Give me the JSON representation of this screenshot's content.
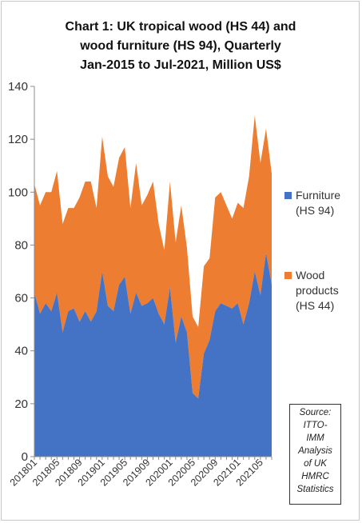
{
  "chart_data": {
    "type": "area",
    "stacked": true,
    "title_lines": [
      "Chart 1: UK tropical wood (HS 44) and",
      "wood furniture (HS 94), Quarterly",
      "Jan-2015 to Jul-2021, Million US$"
    ],
    "ylim": [
      0,
      140
    ],
    "yticks": [
      0,
      20,
      40,
      60,
      80,
      100,
      120,
      140
    ],
    "xtick_labels": [
      "201801",
      "201805",
      "201809",
      "201901",
      "201905",
      "201909",
      "202001",
      "202005",
      "202009",
      "202101",
      "202105"
    ],
    "x": [
      "201801",
      "201802",
      "201803",
      "201804",
      "201805",
      "201806",
      "201807",
      "201808",
      "201809",
      "201810",
      "201811",
      "201812",
      "201901",
      "201902",
      "201903",
      "201904",
      "201905",
      "201906",
      "201907",
      "201908",
      "201909",
      "201910",
      "201911",
      "201912",
      "202001",
      "202002",
      "202003",
      "202004",
      "202005",
      "202006",
      "202007",
      "202008",
      "202009",
      "202010",
      "202011",
      "202012",
      "202101",
      "202102",
      "202103",
      "202104",
      "202105",
      "202106",
      "202107"
    ],
    "series": [
      {
        "name": "Furniture (HS 94)",
        "color": "#4472c4",
        "values": [
          62,
          54,
          58,
          55,
          62,
          47,
          55,
          56,
          51,
          55,
          51,
          55,
          70,
          57,
          55,
          65,
          68,
          54,
          62,
          57,
          58,
          60,
          54,
          50,
          64,
          43,
          53,
          47,
          24,
          22,
          39,
          44,
          55,
          58,
          57,
          56,
          58,
          50,
          58,
          70,
          61,
          77,
          65
        ]
      },
      {
        "name": "Wood products (HS 44)",
        "color": "#ed7d31",
        "values": [
          41,
          41,
          42,
          45,
          46,
          41,
          39,
          38,
          47,
          49,
          53,
          39,
          51,
          49,
          47,
          48,
          49,
          40,
          49,
          38,
          41,
          44,
          34,
          28,
          40,
          38,
          42,
          32,
          29,
          27,
          33,
          31,
          43,
          42,
          38,
          34,
          38,
          44,
          48,
          59,
          50,
          47,
          42
        ]
      }
    ],
    "legend_position": "right",
    "grid": false
  },
  "source_note": [
    "Source:",
    "ITTO-",
    "IMM",
    "Analysis",
    "of UK",
    "HMRC",
    "Statistics"
  ]
}
